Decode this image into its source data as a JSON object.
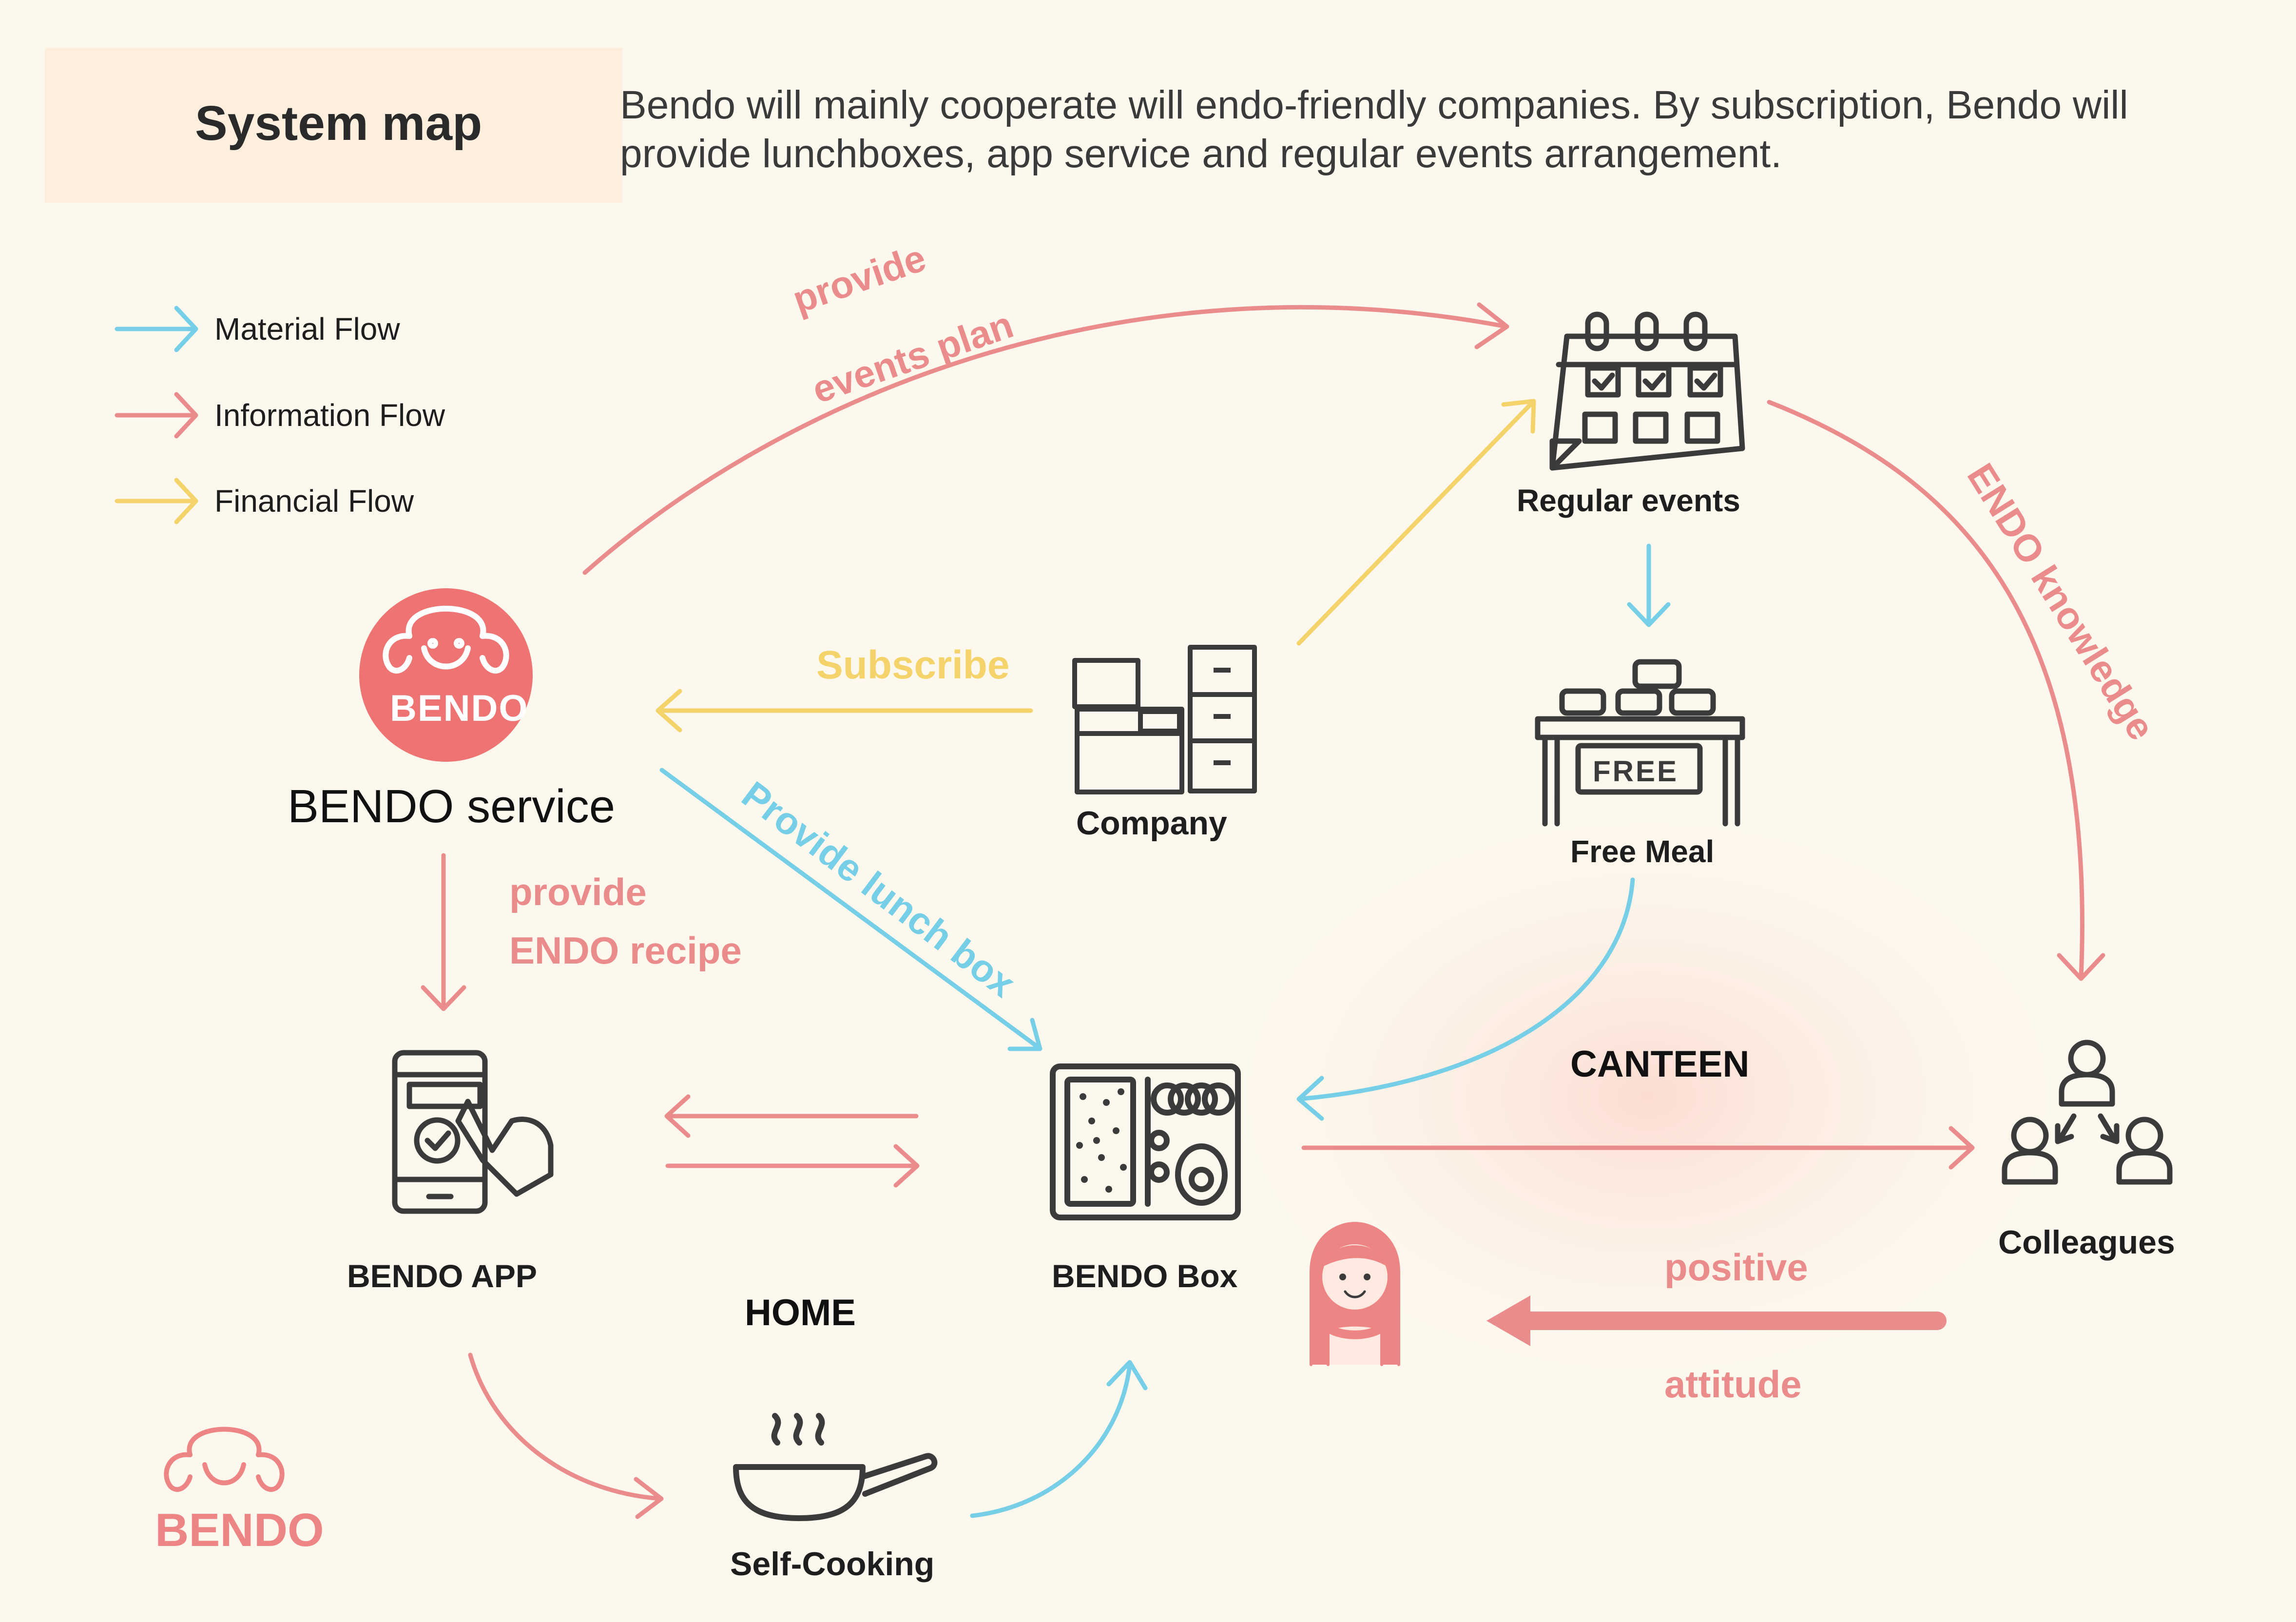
{
  "header": {
    "title": "System map",
    "description": "Bendo will mainly cooperate  will endo-friendly companies. By subscription, Bendo will provide lunchboxes, app service and regular events arrangement."
  },
  "legend": {
    "material": "Material Flow",
    "information": "Information Flow",
    "financial": "Financial Flow"
  },
  "colors": {
    "material": "#76cfe6",
    "information": "#eb8c8c",
    "financial": "#f5d36b",
    "brand": "#ee7373",
    "icon_stroke": "#3b3b3b",
    "background": "#fdf8ed"
  },
  "nodes": {
    "service": "BENDO service",
    "service_logo": "BENDO",
    "app": "BENDO APP",
    "box": "BENDO Box",
    "company": "Company",
    "events": "Regular events",
    "meal": "Free Meal",
    "meal_sign": "FREE",
    "colleagues": "Colleagues",
    "cooking": "Self-Cooking"
  },
  "flows": {
    "events_plan_1": "provide",
    "events_plan_2": "events plan",
    "subscribe": "Subscribe",
    "lunch_box": "Provide lunch box",
    "recipe_1": "provide",
    "recipe_2": "ENDO recipe",
    "knowledge": "ENDO knowledge",
    "positive": "positive",
    "attitude": "attitude"
  },
  "zones": {
    "canteen": "CANTEEN",
    "home": "HOME"
  },
  "footer_logo": "BENDO"
}
